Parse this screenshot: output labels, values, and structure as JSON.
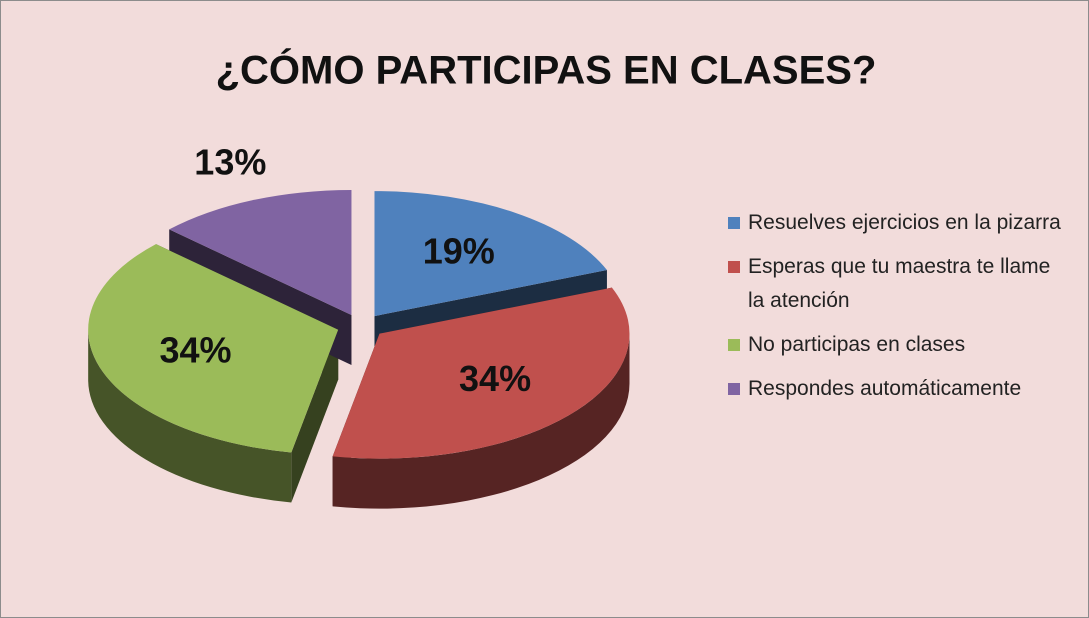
{
  "chart_data": {
    "type": "pie",
    "title": "¿CÓMO PARTICIPAS EN CLASES?",
    "categories": [
      "Resuelves ejercicios en la pizarra",
      "Esperas que tu maestra te llame la atención",
      "No participas en clases",
      "Respondes automáticamente"
    ],
    "values": [
      19,
      34,
      34,
      13
    ],
    "value_labels": [
      "19%",
      "34%",
      "34%",
      "13%"
    ],
    "colors": [
      "#4f81bd",
      "#c0504d",
      "#9bbb59",
      "#8064a2"
    ],
    "legend": "right"
  }
}
